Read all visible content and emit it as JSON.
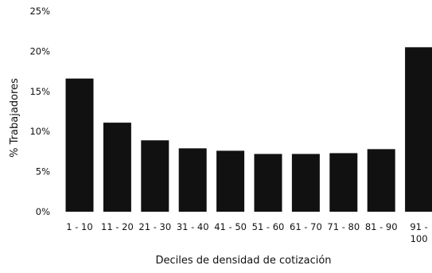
{
  "chart_data": {
    "type": "bar",
    "title": "",
    "xlabel": "Deciles de densidad de cotización",
    "ylabel": "% Trabajadores",
    "ylim": [
      0,
      25
    ],
    "yticks": [
      "0%",
      "5%",
      "10%",
      "15%",
      "20%",
      "25%"
    ],
    "categories": [
      "1 - 10",
      "11 - 20",
      "21 - 30",
      "31 - 40",
      "41 - 50",
      "51 - 60",
      "61 - 70",
      "71 - 80",
      "81 - 90",
      "91 - 100"
    ],
    "values": [
      16.6,
      11.1,
      8.9,
      7.9,
      7.6,
      7.2,
      7.2,
      7.3,
      7.8,
      20.5
    ],
    "grid": false,
    "bar_color": "#111111"
  }
}
